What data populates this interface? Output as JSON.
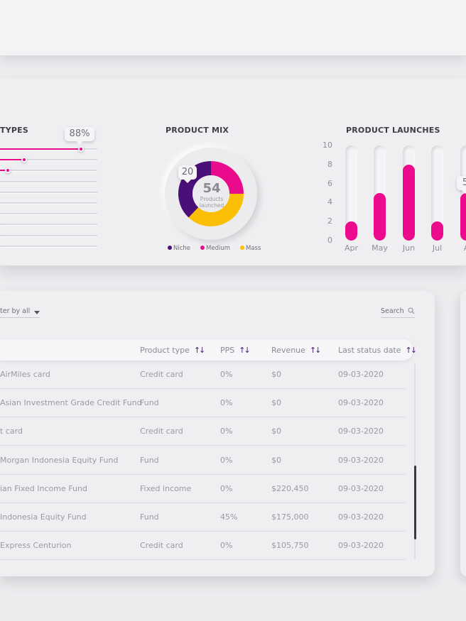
{
  "types": {
    "title": "TYPES",
    "bubble": "88%",
    "sliders": [
      0.83,
      0.25,
      0.08,
      0,
      0,
      0,
      0,
      0,
      0,
      0
    ]
  },
  "mix": {
    "title": "PRODUCT MIX",
    "center_value": "54",
    "center_label_1": "Products",
    "center_label_2": "launched",
    "bubble": "20",
    "legend": [
      {
        "label": "Niche",
        "color": "#4b0f7a"
      },
      {
        "label": "Medium",
        "color": "#ea0a8c"
      },
      {
        "label": "Mass",
        "color": "#fbbf05"
      }
    ]
  },
  "chart_data": {
    "type": "bar",
    "title": "PRODUCT LAUNCHES",
    "categories": [
      "Apr",
      "May",
      "Jun",
      "Jul",
      "A"
    ],
    "values": [
      2,
      5,
      8,
      2,
      5
    ],
    "ylim": [
      0,
      10
    ],
    "yticks": [
      "10",
      "8",
      "6",
      "4",
      "2",
      "0"
    ],
    "bubble": "5",
    "color": "#ec0a8d"
  },
  "table": {
    "filter_label": "ter by all",
    "search_label": "Search",
    "columns": [
      "Product type",
      "PPS",
      "Revenue",
      "Last status date"
    ],
    "sort_glyph": "↑↓",
    "rows": [
      {
        "name": "AirMiles card",
        "type": "Credit card",
        "pps": "0%",
        "revenue": "$0",
        "date": "09-03-2020"
      },
      {
        "name": "Asian Investment Grade Credit Fund",
        "type": "Fund",
        "pps": "0%",
        "revenue": "$0",
        "date": "09-03-2020"
      },
      {
        "name": "t card",
        "type": "Credit card",
        "pps": "0%",
        "revenue": "$0",
        "date": "09-03-2020"
      },
      {
        "name": "Morgan Indonesia Equity Fund",
        "type": "Fund",
        "pps": "0%",
        "revenue": "$0",
        "date": "09-03-2020"
      },
      {
        "name": "ian Fixed Income Fund",
        "type": "Fixed income",
        "pps": "0%",
        "revenue": "$220,450",
        "date": "09-03-2020"
      },
      {
        "name": "Indonesia Equity Fund",
        "type": "Fund",
        "pps": "45%",
        "revenue": "$175,000",
        "date": "09-03-2020"
      },
      {
        "name": "Express Centurion",
        "type": "Credit card",
        "pps": "0%",
        "revenue": "$105,750",
        "date": "09-03-2020"
      }
    ]
  }
}
